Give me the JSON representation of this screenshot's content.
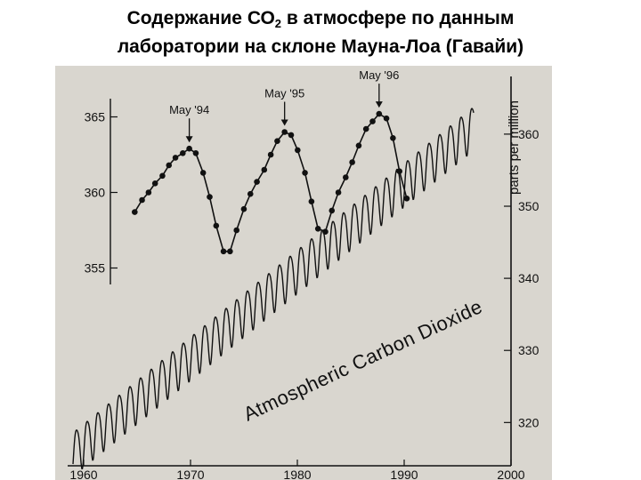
{
  "slide": {
    "title_line1": "Содержание СО",
    "title_sub": "2",
    "title_line1_rest": " в атмосфере по данным",
    "title_line2": "лаборатории на склоне Мауна-Лоа (Гавайи)"
  },
  "colors": {
    "paper": "#d9d6cf",
    "ink": "#111111",
    "background": "#ffffff"
  },
  "chart_data": [
    {
      "type": "line",
      "title": "",
      "xlabel": "",
      "ylabel": "parts per million",
      "x_range": [
        1958.5,
        2000
      ],
      "ylim": [
        314,
        368
      ],
      "x_ticks": [
        "1960",
        "1970",
        "1980",
        "1990",
        "2000"
      ],
      "y_ticks": [
        "320",
        "330",
        "340",
        "350",
        "360"
      ],
      "grid": false,
      "annotations": [
        "Atmospheric Carbon Dioxide"
      ],
      "series": [
        {
          "name": "",
          "trend": {
            "x": [
              1959,
              1996.5
            ],
            "y": [
              316,
              361.2
            ]
          },
          "seasonal_amplitude_ppm": 3
        }
      ]
    },
    {
      "type": "line",
      "title": "",
      "xlabel": "",
      "ylabel": "",
      "x_range": [
        1993.5,
        1997.5
      ],
      "ylim": [
        354.5,
        366.5
      ],
      "y_ticks": [
        "355",
        "360",
        "365"
      ],
      "grid": false,
      "annotations": [
        "May '94",
        "May '95",
        "May '96"
      ],
      "series": [
        {
          "name": "",
          "x": [
            1993.58,
            1993.67,
            1993.75,
            1993.83,
            1993.92,
            1994.0,
            1994.08,
            1994.17,
            1994.25,
            1994.33,
            1994.42,
            1994.5,
            1994.58,
            1994.67,
            1994.75,
            1994.83,
            1994.92,
            1995.0,
            1995.08,
            1995.17,
            1995.25,
            1995.33,
            1995.42,
            1995.5,
            1995.58,
            1995.67,
            1995.75,
            1995.83,
            1995.92,
            1996.0,
            1996.08,
            1996.17,
            1996.25,
            1996.33,
            1996.42,
            1996.5,
            1996.58,
            1996.67,
            1996.75,
            1996.83,
            1996.92
          ],
          "y": [
            358.7,
            359.5,
            360.0,
            360.6,
            361.1,
            361.8,
            362.3,
            362.6,
            362.9,
            362.6,
            361.3,
            359.7,
            357.8,
            356.1,
            356.1,
            357.5,
            358.9,
            359.9,
            360.7,
            361.5,
            362.5,
            363.4,
            364.0,
            363.8,
            362.8,
            361.3,
            359.4,
            357.6,
            357.4,
            358.8,
            360.0,
            361.0,
            362.0,
            363.1,
            364.2,
            364.7,
            365.2,
            364.9,
            363.6,
            361.4,
            359.6
          ]
        }
      ]
    }
  ]
}
